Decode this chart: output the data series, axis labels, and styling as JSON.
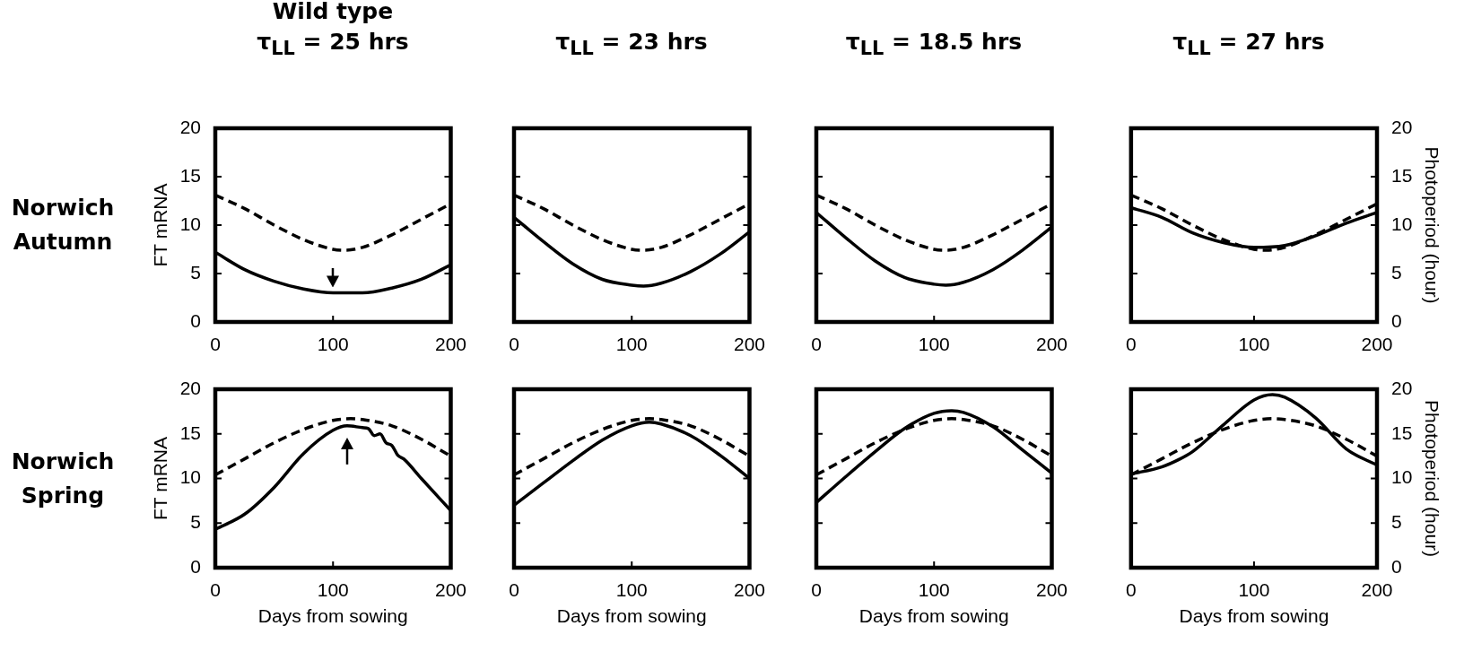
{
  "chart_data": [
    {
      "type": "line",
      "title": "Wild type\nτ$_{LL}$ = 25 hrs",
      "ylabel": "FT mRNA",
      "annotations": [
        "Norwich Autumn"
      ],
      "xlim": [
        0,
        200
      ],
      "xticks": [
        0,
        100,
        200
      ],
      "ylim": [
        0,
        20
      ],
      "yticks": [
        0,
        5,
        10,
        15,
        20
      ],
      "marker": "none",
      "series": [
        {
          "color": "#000000",
          "line_style": "solid",
          "x": [
            0,
            25,
            50,
            75,
            100,
            125,
            150,
            175,
            200
          ],
          "values": [
            7.2,
            5.4,
            4.2,
            3.4,
            3.0,
            3.0,
            3.5,
            4.4,
            5.9
          ]
        },
        {
          "color": "#000000",
          "line_style": "dashed",
          "x": [
            0,
            25,
            50,
            75,
            100,
            110,
            125,
            150,
            175,
            200
          ],
          "values": [
            13.1,
            11.7,
            10.0,
            8.5,
            7.5,
            7.4,
            7.7,
            9.0,
            10.6,
            12.2
          ]
        }
      ]
    },
    {
      "type": "line",
      "title": "τ$_{LL}$ = 23 hrs",
      "xlim": [
        0,
        200
      ],
      "xticks": [
        0,
        100,
        200
      ],
      "ylim": [
        0,
        20
      ],
      "yticks": [
        0,
        5,
        10,
        15,
        20
      ],
      "tick_labels": "x",
      "marker": "none",
      "series": [
        {
          "color": "#000000",
          "line_style": "solid",
          "x": [
            0,
            25,
            50,
            75,
            100,
            110,
            125,
            150,
            175,
            200
          ],
          "values": [
            10.8,
            8.3,
            6.0,
            4.4,
            3.8,
            3.7,
            4.0,
            5.2,
            7.0,
            9.3
          ]
        },
        {
          "color": "#000000",
          "line_style": "dashed",
          "x": [
            0,
            25,
            50,
            75,
            100,
            110,
            125,
            150,
            175,
            200
          ],
          "values": [
            13.1,
            11.7,
            10.0,
            8.5,
            7.5,
            7.4,
            7.7,
            9.0,
            10.6,
            12.2
          ]
        }
      ]
    },
    {
      "type": "line",
      "title": "τ$_{LL}$ = 18.5 hrs",
      "xlim": [
        0,
        200
      ],
      "xticks": [
        0,
        100,
        200
      ],
      "ylim": [
        0,
        20
      ],
      "yticks": [
        0,
        5,
        10,
        15,
        20
      ],
      "tick_labels": "x",
      "marker": "none",
      "series": [
        {
          "color": "#000000",
          "line_style": "solid",
          "x": [
            0,
            25,
            50,
            75,
            100,
            110,
            125,
            150,
            175,
            200
          ],
          "values": [
            11.3,
            8.7,
            6.3,
            4.6,
            3.9,
            3.8,
            4.1,
            5.4,
            7.4,
            9.8
          ]
        },
        {
          "color": "#000000",
          "line_style": "dashed",
          "x": [
            0,
            25,
            50,
            75,
            100,
            110,
            125,
            150,
            175,
            200
          ],
          "values": [
            13.1,
            11.7,
            10.0,
            8.5,
            7.5,
            7.4,
            7.7,
            9.0,
            10.6,
            12.2
          ]
        }
      ]
    },
    {
      "type": "line",
      "title": "τ$_{LL}$ = 27 hrs",
      "y2label": "Photoperiod (hour)",
      "xlim": [
        0,
        200
      ],
      "xticks": [
        0,
        100,
        200
      ],
      "y2lim": [
        0,
        20
      ],
      "y2ticks": [
        0,
        5,
        10,
        15,
        20
      ],
      "marker": "none",
      "series": [
        {
          "color": "#000000",
          "line_style": "solid",
          "axis": "y2",
          "x": [
            0,
            25,
            50,
            75,
            100,
            125,
            150,
            175,
            200
          ],
          "values": [
            11.8,
            10.8,
            9.2,
            8.2,
            7.7,
            7.9,
            8.9,
            10.2,
            11.3
          ]
        },
        {
          "color": "#000000",
          "line_style": "dashed",
          "axis": "y2",
          "x": [
            0,
            25,
            50,
            75,
            100,
            110,
            125,
            150,
            175,
            200
          ],
          "values": [
            13.1,
            11.7,
            10.0,
            8.5,
            7.5,
            7.4,
            7.7,
            9.0,
            10.6,
            12.2
          ]
        }
      ]
    },
    {
      "type": "line",
      "ylabel": "FT mRNA",
      "xlabel": "Days from sowing",
      "annotations": [
        "Norwich Spring"
      ],
      "xlim": [
        0,
        200
      ],
      "xticks": [
        0,
        100,
        200
      ],
      "ylim": [
        0,
        20
      ],
      "yticks": [
        0,
        5,
        10,
        15,
        20
      ],
      "marker": "none",
      "series": [
        {
          "color": "#000000",
          "line_style": "solid",
          "x": [
            0,
            25,
            50,
            75,
            100,
            112,
            125,
            130,
            135,
            140,
            145,
            150,
            155,
            160,
            175,
            200
          ],
          "values": [
            4.3,
            6.0,
            9.0,
            12.8,
            15.4,
            15.9,
            15.7,
            15.6,
            14.8,
            15.0,
            14.0,
            13.7,
            12.6,
            12.2,
            10.0,
            6.4
          ]
        },
        {
          "color": "#000000",
          "line_style": "dashed",
          "x": [
            0,
            25,
            50,
            75,
            100,
            115,
            125,
            150,
            175,
            200
          ],
          "values": [
            10.4,
            12.2,
            14.0,
            15.5,
            16.5,
            16.7,
            16.6,
            15.9,
            14.4,
            12.5
          ]
        }
      ]
    },
    {
      "type": "line",
      "xlabel": "Days from sowing",
      "xlim": [
        0,
        200
      ],
      "xticks": [
        0,
        100,
        200
      ],
      "ylim": [
        0,
        20
      ],
      "yticks": [
        0,
        5,
        10,
        15,
        20
      ],
      "tick_labels": "x",
      "marker": "none",
      "series": [
        {
          "color": "#000000",
          "line_style": "solid",
          "x": [
            0,
            25,
            50,
            75,
            100,
            115,
            125,
            150,
            175,
            200
          ],
          "values": [
            7.0,
            9.5,
            12.0,
            14.3,
            15.9,
            16.3,
            16.1,
            14.8,
            12.6,
            10.0
          ]
        },
        {
          "color": "#000000",
          "line_style": "dashed",
          "x": [
            0,
            25,
            50,
            75,
            100,
            115,
            125,
            150,
            175,
            200
          ],
          "values": [
            10.4,
            12.2,
            14.0,
            15.5,
            16.5,
            16.7,
            16.6,
            15.9,
            14.4,
            12.5
          ]
        }
      ]
    },
    {
      "type": "line",
      "xlabel": "Days from sowing",
      "xlim": [
        0,
        200
      ],
      "xticks": [
        0,
        100,
        200
      ],
      "ylim": [
        0,
        20
      ],
      "yticks": [
        0,
        5,
        10,
        15,
        20
      ],
      "tick_labels": "x",
      "marker": "none",
      "series": [
        {
          "color": "#000000",
          "line_style": "solid",
          "x": [
            0,
            25,
            50,
            75,
            100,
            115,
            125,
            150,
            175,
            200
          ],
          "values": [
            7.3,
            10.2,
            13.0,
            15.6,
            17.3,
            17.6,
            17.4,
            15.8,
            13.2,
            10.6
          ]
        },
        {
          "color": "#000000",
          "line_style": "dashed",
          "x": [
            0,
            25,
            50,
            75,
            100,
            115,
            125,
            150,
            175,
            200
          ],
          "values": [
            10.4,
            12.2,
            14.0,
            15.5,
            16.5,
            16.7,
            16.6,
            15.9,
            14.4,
            12.5
          ]
        }
      ]
    },
    {
      "type": "line",
      "xlabel": "Days from sowing",
      "y2label": "Photoperiod (hour)",
      "xlim": [
        0,
        200
      ],
      "xticks": [
        0,
        100,
        200
      ],
      "y2lim": [
        0,
        20
      ],
      "y2ticks": [
        0,
        5,
        10,
        15,
        20
      ],
      "marker": "none",
      "series": [
        {
          "color": "#000000",
          "line_style": "solid",
          "axis": "y2",
          "x": [
            0,
            25,
            40,
            50,
            75,
            100,
            115,
            125,
            150,
            175,
            200
          ],
          "values": [
            10.5,
            11.3,
            12.2,
            13.0,
            16.0,
            18.8,
            19.4,
            19.1,
            16.8,
            13.3,
            11.5
          ]
        },
        {
          "color": "#000000",
          "line_style": "dashed",
          "axis": "y2",
          "x": [
            0,
            25,
            50,
            75,
            100,
            115,
            125,
            150,
            175,
            200
          ],
          "values": [
            10.4,
            12.2,
            14.0,
            15.5,
            16.5,
            16.7,
            16.6,
            15.9,
            14.4,
            12.5
          ]
        }
      ]
    }
  ]
}
